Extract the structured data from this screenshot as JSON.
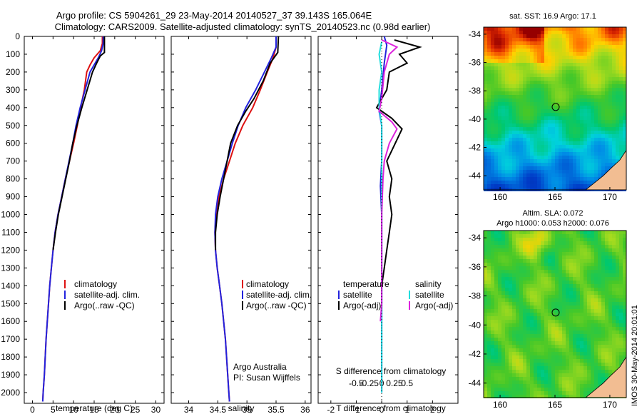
{
  "header": {
    "line1": "Argo profile: CS 5904261_29 23-May-2014 20140527_37 39.143S 165.064E",
    "line2": "Climatology: CARS2009. Satellite-adjusted climatology: synTS_20140523.nc (0.98d earlier)"
  },
  "depth_axis": {
    "ticks": [
      0,
      100,
      200,
      300,
      400,
      500,
      600,
      700,
      800,
      900,
      1000,
      1100,
      1200,
      1300,
      1400,
      1500,
      1600,
      1700,
      1800,
      1900,
      2000
    ],
    "range": [
      0,
      2060
    ]
  },
  "colors": {
    "climatology": "#dd1111",
    "satellite": "#2222dd",
    "argo": "#000000",
    "sal_satellite": "#22dddd",
    "sal_argo": "#dd22dd",
    "land": "#f2bd92"
  },
  "chart_data": [
    {
      "type": "line",
      "panel": "temperature",
      "xlabel": "temperature (deg C)",
      "xlim": [
        -2,
        32
      ],
      "xticks": [
        0,
        5,
        10,
        15,
        20,
        25,
        30
      ],
      "legend": [
        "climatology",
        "satellite-adj. clim.",
        "Argo(..raw -QC)"
      ],
      "series": [
        {
          "name": "climatology",
          "points": [
            [
              17,
              0
            ],
            [
              17,
              40
            ],
            [
              16.5,
              80
            ],
            [
              15,
              120
            ],
            [
              14,
              160
            ],
            [
              13.2,
              200
            ],
            [
              12.6,
              300
            ],
            [
              11.7,
              400
            ],
            [
              10.9,
              500
            ],
            [
              10,
              600
            ],
            [
              9,
              700
            ],
            [
              8,
              800
            ],
            [
              7.1,
              900
            ],
            [
              6.2,
              1000
            ],
            [
              5.5,
              1100
            ],
            [
              5,
              1200
            ],
            [
              4.6,
              1300
            ],
            [
              4.2,
              1400
            ],
            [
              3.9,
              1500
            ],
            [
              3.6,
              1600
            ],
            [
              3.3,
              1700
            ],
            [
              3.1,
              1800
            ],
            [
              2.9,
              1900
            ],
            [
              2.6,
              2000
            ],
            [
              2.5,
              2050
            ]
          ]
        },
        {
          "name": "satellite-adj. clim.",
          "points": [
            [
              17.2,
              0
            ],
            [
              17.2,
              40
            ],
            [
              16.8,
              80
            ],
            [
              16,
              120
            ],
            [
              15,
              160
            ],
            [
              14,
              200
            ],
            [
              12.8,
              300
            ],
            [
              11.6,
              400
            ],
            [
              10.6,
              500
            ],
            [
              9.8,
              600
            ],
            [
              8.9,
              700
            ],
            [
              8,
              800
            ],
            [
              7.1,
              900
            ],
            [
              6.2,
              1000
            ],
            [
              5.5,
              1100
            ],
            [
              5,
              1200
            ],
            [
              4.6,
              1300
            ],
            [
              4.2,
              1400
            ],
            [
              3.9,
              1500
            ],
            [
              3.6,
              1600
            ],
            [
              3.3,
              1700
            ],
            [
              3.1,
              1800
            ],
            [
              2.9,
              1900
            ],
            [
              2.6,
              2000
            ],
            [
              2.5,
              2050
            ]
          ]
        },
        {
          "name": "Argo(..raw -QC)",
          "points": [
            [
              17.5,
              0
            ],
            [
              17.5,
              90
            ],
            [
              16.5,
              110
            ],
            [
              15.6,
              150
            ],
            [
              14.6,
              200
            ],
            [
              13.3,
              300
            ],
            [
              12,
              400
            ],
            [
              10.8,
              500
            ],
            [
              9.8,
              600
            ],
            [
              9,
              700
            ],
            [
              8.1,
              800
            ],
            [
              7.2,
              900
            ],
            [
              6.3,
              1000
            ],
            [
              5.6,
              1100
            ],
            [
              5,
              1200
            ]
          ]
        }
      ]
    },
    {
      "type": "line",
      "panel": "salinity",
      "xlabel": "salinity",
      "xlim": [
        33.7,
        36.1
      ],
      "xticks": [
        34,
        34.5,
        35,
        35.5,
        36
      ],
      "legend": [
        "climatology",
        "satellite-adj. clim.",
        "Argo(..raw -QC)"
      ],
      "series": [
        {
          "name": "climatology",
          "points": [
            [
              35.5,
              0
            ],
            [
              35.5,
              60
            ],
            [
              35.45,
              120
            ],
            [
              35.35,
              200
            ],
            [
              35.23,
              300
            ],
            [
              35.1,
              400
            ],
            [
              34.93,
              500
            ],
            [
              34.8,
              600
            ],
            [
              34.7,
              700
            ],
            [
              34.6,
              800
            ],
            [
              34.52,
              900
            ],
            [
              34.47,
              1000
            ],
            [
              34.45,
              1100
            ],
            [
              34.46,
              1200
            ],
            [
              34.49,
              1300
            ],
            [
              34.53,
              1400
            ],
            [
              34.57,
              1500
            ],
            [
              34.6,
              1600
            ],
            [
              34.63,
              1700
            ],
            [
              34.65,
              1800
            ],
            [
              34.67,
              1900
            ],
            [
              34.69,
              2000
            ],
            [
              34.7,
              2050
            ]
          ]
        },
        {
          "name": "satellite-adj. clim.",
          "points": [
            [
              35.5,
              0
            ],
            [
              35.5,
              60
            ],
            [
              35.42,
              120
            ],
            [
              35.3,
              200
            ],
            [
              35.15,
              300
            ],
            [
              34.98,
              400
            ],
            [
              34.85,
              500
            ],
            [
              34.75,
              600
            ],
            [
              34.66,
              700
            ],
            [
              34.57,
              800
            ],
            [
              34.5,
              900
            ],
            [
              34.46,
              1000
            ],
            [
              34.45,
              1100
            ],
            [
              34.46,
              1200
            ],
            [
              34.49,
              1300
            ],
            [
              34.53,
              1400
            ],
            [
              34.57,
              1500
            ],
            [
              34.6,
              1600
            ],
            [
              34.63,
              1700
            ],
            [
              34.65,
              1800
            ],
            [
              34.67,
              1900
            ],
            [
              34.69,
              2000
            ],
            [
              34.7,
              2050
            ]
          ]
        },
        {
          "name": "Argo(..raw -QC)",
          "points": [
            [
              35.54,
              0
            ],
            [
              35.53,
              90
            ],
            [
              35.4,
              150
            ],
            [
              35.28,
              250
            ],
            [
              35.12,
              350
            ],
            [
              34.98,
              420
            ],
            [
              34.84,
              500
            ],
            [
              34.72,
              600
            ],
            [
              34.66,
              700
            ],
            [
              34.6,
              800
            ],
            [
              34.54,
              900
            ],
            [
              34.49,
              1000
            ],
            [
              34.46,
              1100
            ],
            [
              34.46,
              1200
            ]
          ]
        }
      ],
      "annotations": [
        "Argo Australia",
        "PI: Susan Wijffels"
      ]
    },
    {
      "type": "line",
      "panel": "difference",
      "xlabel": "T difference from climatology",
      "xlabel_top": "S difference from climatology",
      "xlim": [
        -2.5,
        3
      ],
      "xticks": [
        -2,
        -1,
        0,
        1,
        2
      ],
      "xticks_top_labels": [
        "-0.5",
        "-0.25",
        "0",
        "0.25",
        "0.5"
      ],
      "legend_temperature": [
        "temperature",
        "satellite",
        "Argo(-adj)"
      ],
      "legend_salinity": [
        "salinity",
        "satellite",
        "Argo(-adj)"
      ],
      "series": [
        {
          "name": "temperature satellite",
          "points": [
            [
              0.1,
              0
            ],
            [
              0.2,
              50
            ],
            [
              0.1,
              150
            ],
            [
              0,
              300
            ],
            [
              -0.1,
              420
            ],
            [
              0,
              500
            ],
            [
              0,
              700
            ],
            [
              -0.05,
              840
            ],
            [
              0,
              1000
            ],
            [
              0,
              1500
            ],
            [
              0,
              2000
            ]
          ]
        },
        {
          "name": "temperature Argo(-adj)",
          "points": [
            [
              0.5,
              20
            ],
            [
              1.5,
              60
            ],
            [
              0.7,
              100
            ],
            [
              1,
              150
            ],
            [
              0.3,
              200
            ],
            [
              0.2,
              300
            ],
            [
              -0.2,
              400
            ],
            [
              0.4,
              460
            ],
            [
              0.8,
              520
            ],
            [
              0.6,
              580
            ],
            [
              0.2,
              700
            ],
            [
              0.4,
              800
            ],
            [
              0.3,
              900
            ],
            [
              0.4,
              1000
            ],
            [
              0.3,
              1100
            ],
            [
              0.2,
              1200
            ],
            [
              0.1,
              1300
            ],
            [
              0,
              1400
            ]
          ]
        },
        {
          "name": "salinity satellite",
          "points": [
            [
              0,
              30
            ],
            [
              -0.1,
              100
            ],
            [
              0,
              200
            ],
            [
              -0.1,
              300
            ],
            [
              -0.1,
              400
            ],
            [
              0,
              500
            ],
            [
              0,
              600
            ],
            [
              0,
              800
            ],
            [
              0,
              1000
            ],
            [
              0,
              1400
            ],
            [
              0,
              2000
            ]
          ]
        },
        {
          "name": "salinity Argo(-adj)",
          "points": [
            [
              0,
              20
            ],
            [
              0.6,
              60
            ],
            [
              0.3,
              100
            ],
            [
              0.1,
              200
            ],
            [
              0,
              350
            ],
            [
              -0.1,
              420
            ],
            [
              0.4,
              480
            ],
            [
              0.6,
              520
            ],
            [
              0.3,
              600
            ],
            [
              0.1,
              700
            ],
            [
              0.05,
              800
            ],
            [
              0,
              1000
            ],
            [
              0,
              1500
            ],
            [
              -0.05,
              1600
            ]
          ]
        }
      ]
    },
    {
      "type": "heatmap",
      "panel": "sst_map",
      "title": "sat. SST: 16.9  Argo: 17.1",
      "xlim": [
        158.5,
        171.5
      ],
      "ylim": [
        -45,
        -33.5
      ],
      "xticks": [
        160,
        165,
        170
      ],
      "yticks": [
        -34,
        -36,
        -38,
        -40,
        -42,
        -44
      ],
      "argo_position": [
        165.064,
        -39.143
      ]
    },
    {
      "type": "heatmap",
      "panel": "sla_map",
      "title": "Altim. SLA: 0.072",
      "subtitle": "Argo h1000: 0.053 h2000: 0.076",
      "xlim": [
        158.5,
        171.5
      ],
      "ylim": [
        -45,
        -33.5
      ],
      "xticks": [
        160,
        165,
        170
      ],
      "yticks": [
        -34,
        -36,
        -38,
        -40,
        -42,
        -44
      ],
      "argo_position": [
        165.064,
        -39.143
      ]
    }
  ],
  "side_label": "IMOS 30-May-2014 20:01:01"
}
